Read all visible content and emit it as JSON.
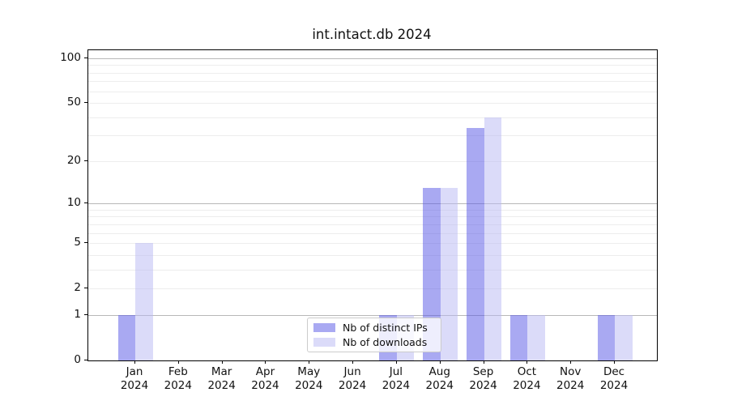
{
  "chart_data": {
    "type": "bar",
    "title": "int.intact.db 2024",
    "categories": [
      "Jan",
      "Feb",
      "Mar",
      "Apr",
      "May",
      "Jun",
      "Jul",
      "Aug",
      "Sep",
      "Oct",
      "Nov",
      "Dec"
    ],
    "year": "2024",
    "series": [
      {
        "name": "Nb of distinct IPs",
        "color": "#a9a9f2",
        "bar_rgba": "rgba(84,84,230,0.5)",
        "values": [
          1,
          0,
          0,
          0,
          0,
          0,
          1,
          13,
          34,
          1,
          0,
          1
        ]
      },
      {
        "name": "Nb of downloads",
        "color": "#dbdbf9",
        "bar_rgba": "rgba(183,183,243,0.5)",
        "values": [
          5,
          0,
          0,
          0,
          0,
          0,
          1,
          13,
          40,
          1,
          0,
          1
        ]
      }
    ],
    "y_scale": "log10(1+v)",
    "y_ticks": [
      0,
      1,
      2,
      5,
      10,
      20,
      50,
      100
    ],
    "y_major_gridlines": [
      1,
      10,
      100
    ],
    "y_minor_gridlines": [
      2,
      3,
      4,
      5,
      6,
      7,
      8,
      9,
      20,
      30,
      40,
      50,
      60,
      70,
      80,
      90
    ],
    "ylim": [
      0,
      113
    ],
    "grid": true,
    "legend_position": "lower center",
    "colors": {
      "spine": "#000000",
      "major_grid": "#b8b8b8",
      "minor_grid": "#ededed"
    }
  }
}
